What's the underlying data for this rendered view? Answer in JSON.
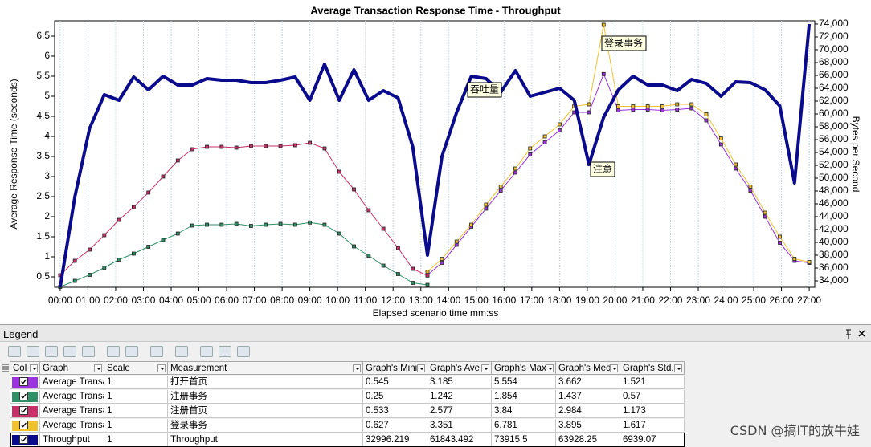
{
  "chart_data": {
    "type": "line",
    "title": "Average Transaction Response Time - Throughput",
    "x_label": "Elapsed scenario time mm:ss",
    "y_label": "Average Response Time (seconds)",
    "y2_label": "Bytes per Second",
    "annotations": [
      "吞吐量",
      "注意",
      "登录事务"
    ],
    "grid": true,
    "xlim": [
      -0.2,
      27.2
    ],
    "ylim": [
      0.24,
      6.88
    ],
    "y2lim": [
      33000,
      74500
    ],
    "xticks": [
      {
        "value": 0,
        "label": "00:00"
      },
      {
        "value": 1,
        "label": "01:00"
      },
      {
        "value": 2,
        "label": "02:00"
      },
      {
        "value": 3,
        "label": "03:00"
      },
      {
        "value": 4,
        "label": "04:00"
      },
      {
        "value": 5,
        "label": "05:00"
      },
      {
        "value": 6,
        "label": "06:00"
      },
      {
        "value": 7,
        "label": "07:00"
      },
      {
        "value": 8,
        "label": "08:00"
      },
      {
        "value": 9,
        "label": "09:00"
      },
      {
        "value": 10,
        "label": "10:00"
      },
      {
        "value": 11,
        "label": "11:00"
      },
      {
        "value": 12,
        "label": "12:00"
      },
      {
        "value": 13,
        "label": "13:00"
      },
      {
        "value": 14,
        "label": "14:00"
      },
      {
        "value": 15,
        "label": "15:00"
      },
      {
        "value": 16,
        "label": "16:00"
      },
      {
        "value": 17,
        "label": "17:00"
      },
      {
        "value": 18,
        "label": "18:00"
      },
      {
        "value": 19,
        "label": "19:00"
      },
      {
        "value": 20,
        "label": "20:00"
      },
      {
        "value": 21,
        "label": "21:00"
      },
      {
        "value": 22,
        "label": "22:00"
      },
      {
        "value": 23,
        "label": "23:00"
      },
      {
        "value": 24,
        "label": "24:00"
      },
      {
        "value": 25,
        "label": "25:00"
      },
      {
        "value": 26,
        "label": "26:00"
      },
      {
        "value": 27,
        "label": "27:00"
      }
    ],
    "yticks": [
      0.5,
      1,
      1.5,
      2,
      2.5,
      3,
      3.5,
      4,
      4.5,
      5,
      5.5,
      6,
      6.5
    ],
    "y2ticks": [
      {
        "value": 34000,
        "label": "34,000"
      },
      {
        "value": 36000,
        "label": "36,000"
      },
      {
        "value": 38000,
        "label": "38,000"
      },
      {
        "value": 40000,
        "label": "40,000"
      },
      {
        "value": 42000,
        "label": "42,000"
      },
      {
        "value": 44000,
        "label": "44,000"
      },
      {
        "value": 46000,
        "label": "46,000"
      },
      {
        "value": 48000,
        "label": "48,000"
      },
      {
        "value": 50000,
        "label": "50,000"
      },
      {
        "value": 52000,
        "label": "52,000"
      },
      {
        "value": 54000,
        "label": "54,000"
      },
      {
        "value": 56000,
        "label": "56,000"
      },
      {
        "value": 58000,
        "label": "58,000"
      },
      {
        "value": 60000,
        "label": "60,000"
      },
      {
        "value": 62000,
        "label": "62,000"
      },
      {
        "value": 64000,
        "label": "64,000"
      },
      {
        "value": 66000,
        "label": "66,000"
      },
      {
        "value": 68000,
        "label": "68,000"
      },
      {
        "value": 70000,
        "label": "70,000"
      },
      {
        "value": 72000,
        "label": "72,000"
      },
      {
        "value": 74000,
        "label": "74,000"
      }
    ],
    "x": [
      0,
      0.53,
      1.06,
      1.59,
      2.12,
      2.65,
      3.18,
      3.71,
      4.24,
      4.76,
      5.29,
      5.82,
      6.35,
      6.88,
      7.41,
      7.94,
      8.47,
      9.0,
      9.53,
      10.06,
      10.59,
      11.12,
      11.65,
      12.18,
      12.71,
      13.24,
      13.76,
      14.29,
      14.82,
      15.35,
      15.88,
      16.41,
      16.94,
      17.47,
      18.0,
      18.53,
      19.06,
      19.59,
      20.12,
      20.65,
      21.18,
      21.71,
      22.24,
      22.76,
      23.29,
      23.82,
      24.35,
      24.88,
      25.41,
      25.94,
      26.47,
      27.0
    ],
    "series": [
      {
        "name": "打开首页",
        "color": "#9b34e0",
        "marker": "square",
        "values": [
          null,
          null,
          null,
          null,
          null,
          null,
          null,
          null,
          null,
          null,
          null,
          null,
          null,
          null,
          null,
          null,
          null,
          null,
          null,
          null,
          null,
          null,
          null,
          null,
          null,
          0.545,
          0.85,
          1.3,
          1.75,
          2.2,
          2.65,
          3.1,
          3.55,
          3.85,
          4.15,
          4.6,
          4.6,
          5.554,
          4.65,
          4.67,
          4.67,
          4.65,
          4.67,
          4.7,
          4.4,
          3.8,
          3.2,
          2.65,
          2.0,
          1.35,
          0.9,
          0.85
        ]
      },
      {
        "name": "注册事务",
        "color": "#2f8f66",
        "marker": "square",
        "values": [
          0.25,
          0.4,
          0.55,
          0.73,
          0.93,
          1.08,
          1.25,
          1.42,
          1.58,
          1.78,
          1.8,
          1.8,
          1.82,
          1.77,
          1.8,
          1.82,
          1.8,
          1.854,
          1.8,
          1.58,
          1.26,
          1.03,
          0.78,
          0.57,
          0.35,
          0.3,
          null,
          null,
          null,
          null,
          null,
          null,
          null,
          null,
          null,
          null,
          null,
          null,
          null,
          null,
          null,
          null,
          null,
          null,
          null,
          null,
          null,
          null,
          null,
          null,
          null,
          null
        ]
      },
      {
        "name": "注册首页",
        "color": "#c8306a",
        "marker": "square",
        "values": [
          0.54,
          0.9,
          1.18,
          1.54,
          1.92,
          2.24,
          2.6,
          3.0,
          3.4,
          3.68,
          3.74,
          3.74,
          3.72,
          3.76,
          3.76,
          3.76,
          3.78,
          3.84,
          3.7,
          3.12,
          2.68,
          2.16,
          1.7,
          1.22,
          0.7,
          0.533,
          null,
          null,
          null,
          null,
          null,
          null,
          null,
          null,
          null,
          null,
          null,
          null,
          null,
          null,
          null,
          null,
          null,
          null,
          null,
          null,
          null,
          null,
          null,
          null,
          null,
          null
        ]
      },
      {
        "name": "登录事务",
        "color": "#f2c12e",
        "marker": "square",
        "values": [
          null,
          null,
          null,
          null,
          null,
          null,
          null,
          null,
          null,
          null,
          null,
          null,
          null,
          null,
          null,
          null,
          null,
          null,
          null,
          null,
          null,
          null,
          null,
          null,
          null,
          0.627,
          0.95,
          1.38,
          1.8,
          2.3,
          2.75,
          3.2,
          3.7,
          4.0,
          4.3,
          4.75,
          4.8,
          6.781,
          4.75,
          4.75,
          4.75,
          4.75,
          4.8,
          4.8,
          4.55,
          3.95,
          3.3,
          2.75,
          2.1,
          1.5,
          0.95,
          0.87
        ]
      },
      {
        "name": "Throughput",
        "color": "#0a0a8c",
        "axis": "y2",
        "values": [
          33000,
          47125,
          57750,
          63000,
          62125,
          65750,
          63750,
          65875,
          64500,
          64500,
          65500,
          65250,
          65250,
          64875,
          64875,
          65250,
          65750,
          62125,
          67750,
          62125,
          66875,
          62125,
          63625,
          62500,
          54875,
          38000,
          53375,
          60250,
          65875,
          65500,
          63375,
          66750,
          62750,
          63375,
          64000,
          62125,
          52125,
          59500,
          63750,
          65875,
          64500,
          64500,
          63625,
          65375,
          64750,
          62750,
          65000,
          64875,
          63750,
          61250,
          49250,
          74000
        ]
      }
    ]
  },
  "legend": {
    "title": "Legend",
    "columns": [
      "Col",
      "Graph",
      "Scale",
      "Measurement",
      "Graph's Mini",
      "Graph's Ave",
      "Graph's Max",
      "Graph's Med",
      "Graph's Std."
    ],
    "rows": [
      {
        "graph": "Average Transa",
        "scale": "1",
        "min": "0.545",
        "avg": "3.185",
        "max": "5.554",
        "med": "3.662",
        "std": "1.521"
      },
      {
        "graph": "Average Transa",
        "scale": "1",
        "min": "0.25",
        "avg": "1.242",
        "max": "1.854",
        "med": "1.437",
        "std": "0.57"
      },
      {
        "graph": "Average Transa",
        "scale": "1",
        "min": "0.533",
        "avg": "2.577",
        "max": "3.84",
        "med": "2.984",
        "std": "1.173"
      },
      {
        "graph": "Average Transa",
        "scale": "1",
        "min": "0.627",
        "avg": "3.351",
        "max": "6.781",
        "med": "3.895",
        "std": "1.617"
      },
      {
        "graph": "Throughput",
        "scale": "1",
        "min": "32996.219",
        "avg": "61843.492",
        "max": "73915.5",
        "med": "63928.25",
        "std": "6939.07"
      }
    ]
  },
  "watermark": "CSDN @搞IT的放牛娃"
}
